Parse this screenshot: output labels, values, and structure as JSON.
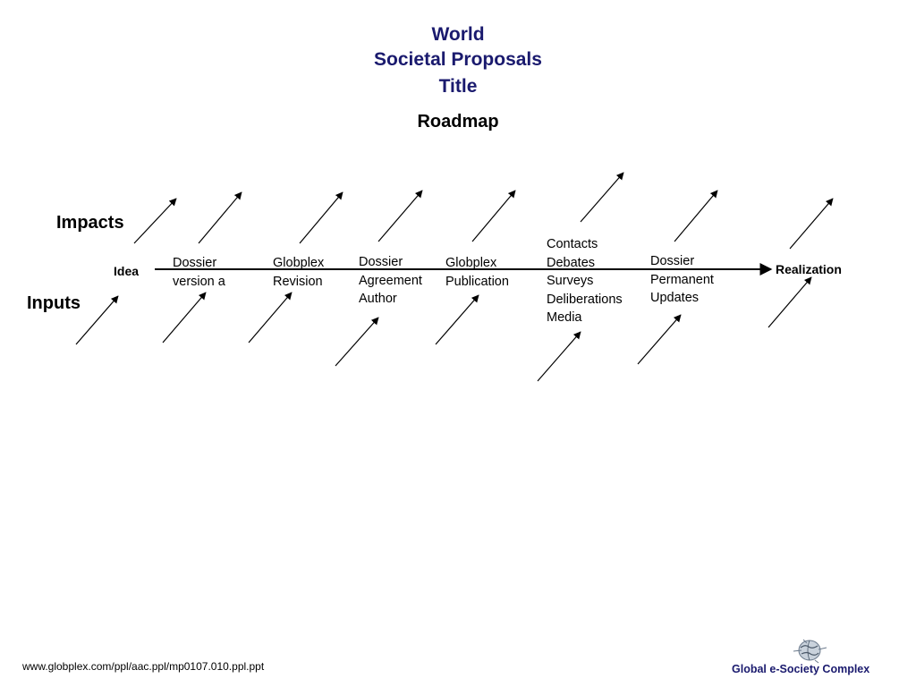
{
  "title": {
    "line1": "World",
    "line2": "Societal Proposals",
    "line3": "Title"
  },
  "subtitle": "Roadmap",
  "side_labels": {
    "impacts": "Impacts",
    "inputs": "Inputs"
  },
  "timeline": {
    "start": "Idea",
    "end": "Realization"
  },
  "stages": [
    {
      "lines": [
        "Dossier",
        "version a"
      ]
    },
    {
      "lines": [
        "Globplex",
        "Revision"
      ]
    },
    {
      "lines": [
        "Dossier",
        "Agreement",
        "Author"
      ]
    },
    {
      "lines": [
        "Globplex",
        "Publication"
      ]
    },
    {
      "lines": [
        "Contacts",
        "Debates",
        "Surveys",
        "Deliberations",
        "Media"
      ]
    },
    {
      "lines": [
        "Dossier",
        "Permanent",
        "Updates"
      ]
    }
  ],
  "footer": {
    "url": "www.globplex.com/ppl/aac.ppl/mp0107.010.ppl.ppt",
    "brand": "Global e-Society Complex"
  },
  "colors": {
    "title": "#1a1a6e",
    "arrow": "#000000"
  },
  "icons": {
    "logo": "globe-icon"
  }
}
